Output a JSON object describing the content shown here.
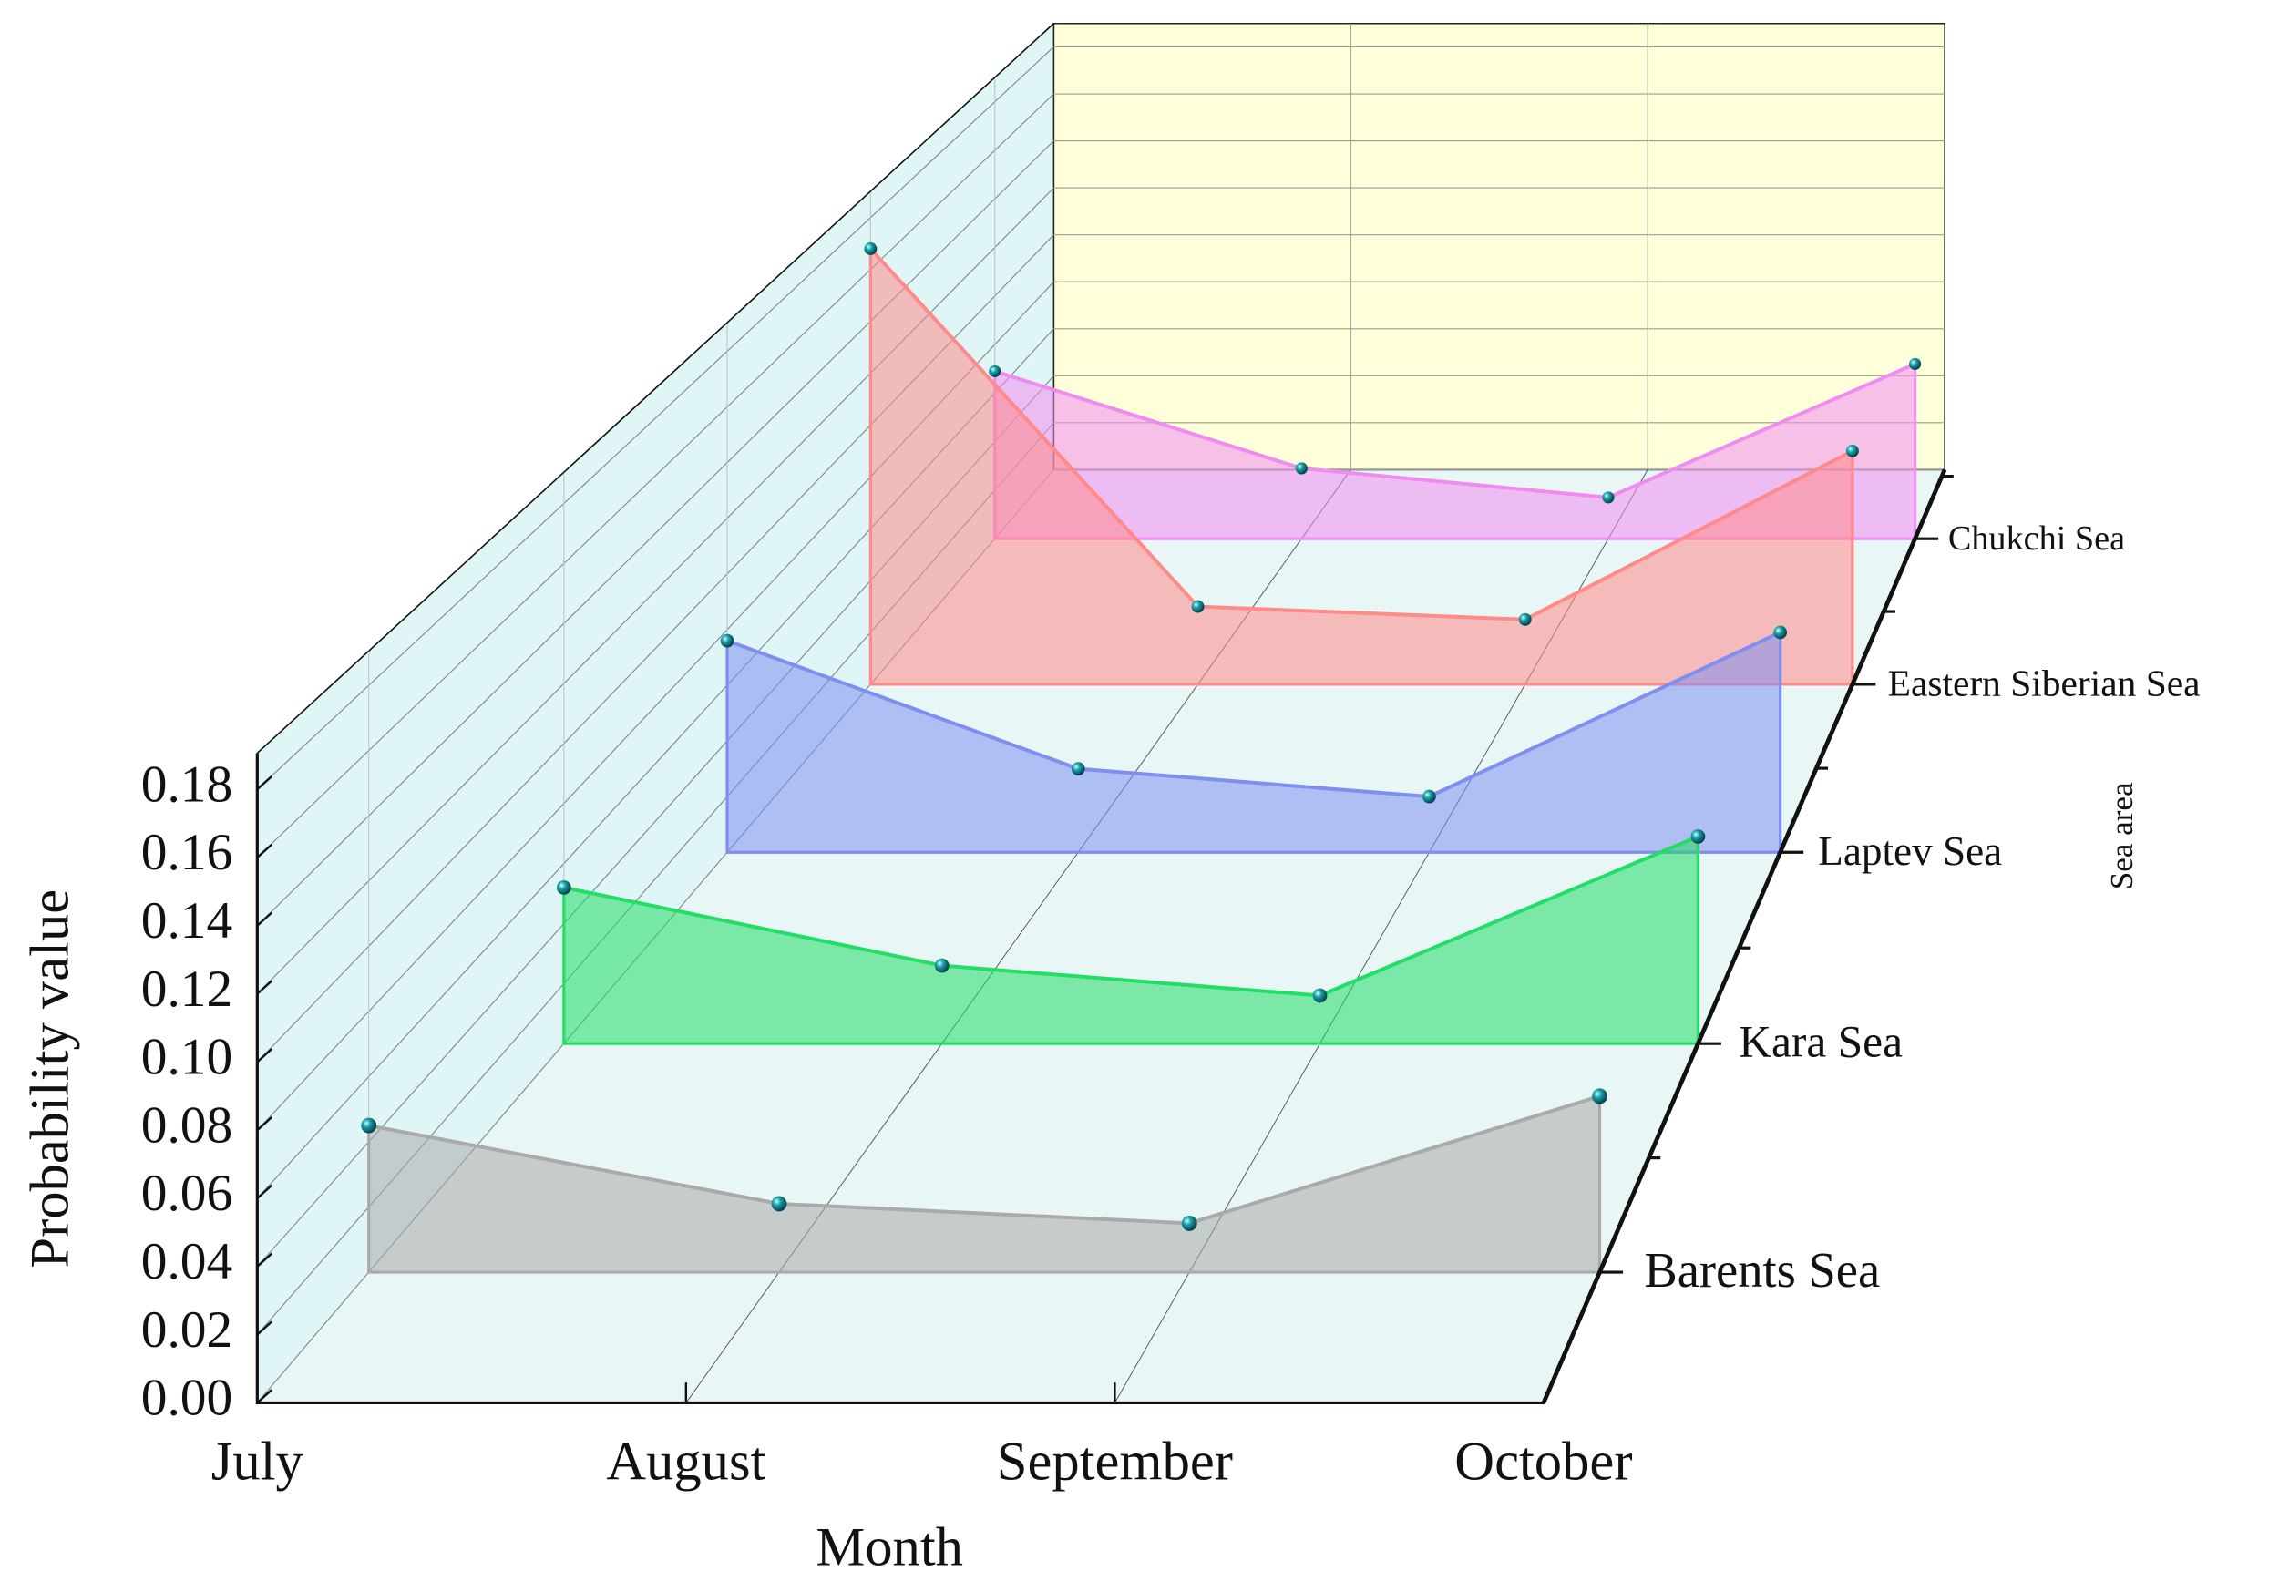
{
  "chart_data": {
    "type": "waterfall3d",
    "x_label": "Month",
    "y_label": "Probability value",
    "z_label": "Sea area",
    "categories": [
      "July",
      "August",
      "September",
      "October"
    ],
    "ylim": [
      0,
      0.19
    ],
    "yticks": [
      {
        "value": 0,
        "label": "0.00"
      },
      0.02,
      0.04,
      0.06,
      0.08,
      {
        "value": 0.1,
        "label": "0.10"
      },
      0.12,
      0.14,
      0.16,
      0.18
    ],
    "series": [
      {
        "name": "Barents Sea",
        "color": "#aaaaaa",
        "values": [
          0.045,
          0.021,
          0.015,
          0.054
        ]
      },
      {
        "name": "Kara Sea",
        "color": "#22dd66",
        "values": [
          0.052,
          0.026,
          0.016,
          0.069
        ]
      },
      {
        "name": "Laptev Sea",
        "color": "#7f8ff0",
        "values": [
          0.076,
          0.03,
          0.02,
          0.079
        ]
      },
      {
        "name": "Eastern Siberian Sea",
        "color": "#ff8a8a",
        "values": [
          0.168,
          0.03,
          0.025,
          0.09
        ]
      },
      {
        "name": "Chukchi Sea",
        "color": "#f08cf0",
        "values": [
          0.069,
          0.029,
          0.017,
          0.072
        ]
      }
    ]
  }
}
